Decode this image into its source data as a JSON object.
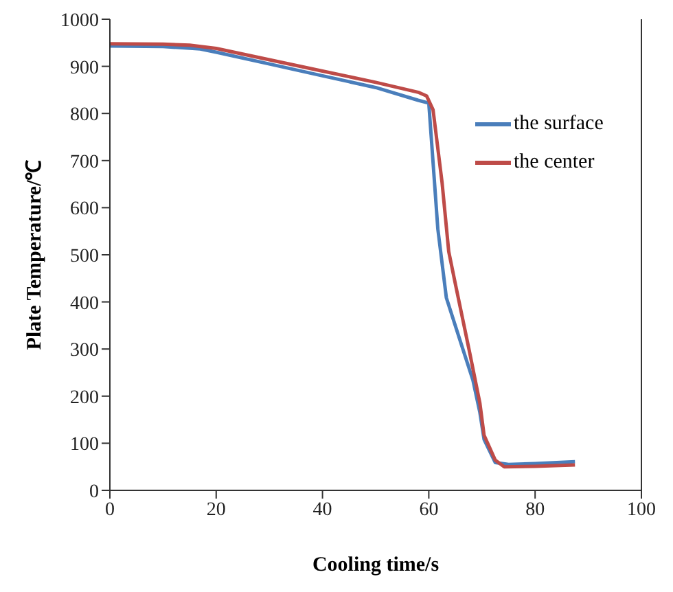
{
  "chart_data": {
    "type": "line",
    "xlabel": "Cooling time/s",
    "ylabel": "Plate Temperature/℃",
    "xlim": [
      0,
      100
    ],
    "xticks": [
      0,
      20,
      40,
      60,
      80,
      100
    ],
    "ylim": [
      0,
      1000
    ],
    "yticks": [
      0,
      100,
      200,
      300,
      400,
      500,
      600,
      700,
      800,
      900,
      1000
    ],
    "grid": false,
    "legend": "top right",
    "marker": "none",
    "line_style": "solid",
    "series": [
      {
        "name": "the surface",
        "color": "#4a7ebb",
        "x": [
          0,
          10,
          17,
          20,
          30,
          40,
          50,
          58,
          60,
          61.7,
          63.3,
          65.8,
          68.3,
          69.6,
          70.4,
          72.5,
          75,
          80,
          87.5
        ],
        "values": [
          943,
          942,
          937,
          930,
          905,
          880,
          855,
          828,
          822,
          555,
          409,
          321,
          234,
          166,
          108,
          59,
          55,
          57,
          61
        ]
      },
      {
        "name": "the center",
        "color": "#be4b48",
        "x": [
          0,
          10,
          15,
          20,
          30,
          40,
          50,
          58,
          59.6,
          60.8,
          62.5,
          63.75,
          65,
          67.5,
          69.6,
          70.4,
          72.5,
          74.2,
          80,
          87.5
        ],
        "values": [
          948,
          947,
          945,
          938,
          914,
          890,
          866,
          845,
          837,
          808,
          653,
          507,
          438,
          303,
          186,
          117,
          64,
          50,
          51,
          54
        ]
      }
    ]
  }
}
